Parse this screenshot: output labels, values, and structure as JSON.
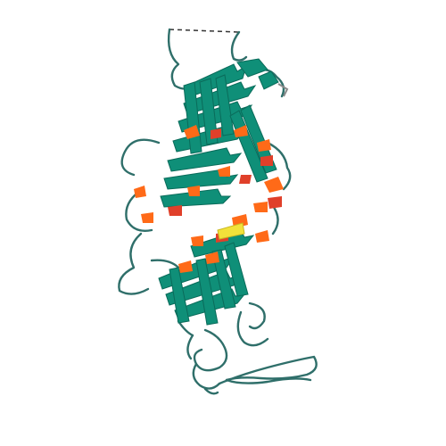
{
  "image": {
    "subject": "protein cartoon",
    "colors": {
      "background": "#ffffff",
      "strand": "#0f8f78",
      "strand_dark": "#0a6b5a",
      "coil": "#2f6f6a",
      "highlight_orange": "#ff6a18",
      "highlight_red": "#e0402a",
      "highlight_yellow": "#f2e23a",
      "gap_dash": "#333333"
    }
  }
}
